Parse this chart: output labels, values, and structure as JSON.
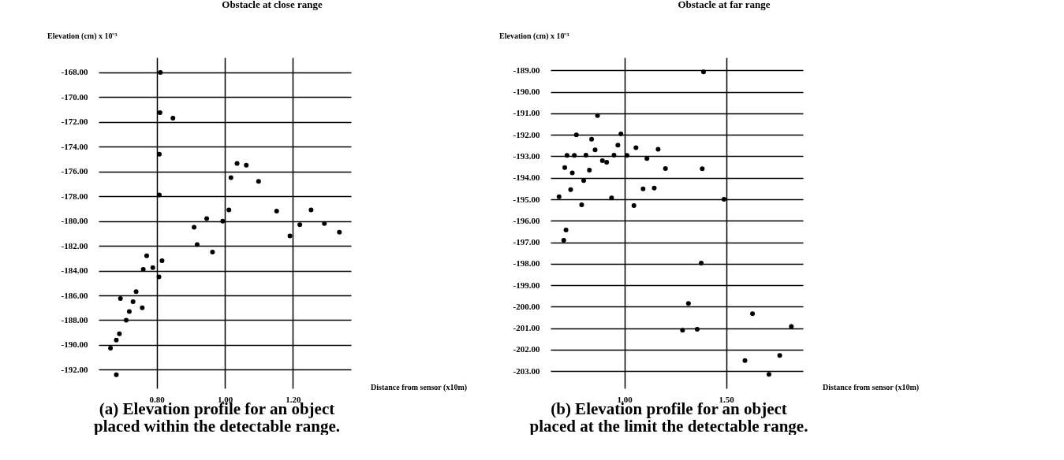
{
  "chart_data": [
    {
      "type": "scatter",
      "title": "Obstacle at close range",
      "ylabel": "Elevation (cm) x 10⁻³",
      "xlabel": "Distance from sensor (x10m)",
      "x": [
        0.811,
        0.81,
        0.848,
        0.808,
        1.036,
        1.063,
        1.018,
        1.099,
        0.808,
        1.012,
        1.152,
        1.253,
        0.91,
        0.947,
        0.994,
        0.919,
        0.964,
        1.191,
        1.22,
        1.292,
        1.336,
        0.771,
        0.761,
        0.789,
        0.816,
        0.807,
        0.74,
        0.694,
        0.731,
        0.758,
        0.72,
        0.711,
        0.691,
        0.682,
        0.665,
        0.682
      ],
      "series": [
        {
          "color": "#000000",
          "values": [
            -168.0,
            -171.25,
            -171.7,
            -174.6,
            -175.35,
            -175.5,
            -176.5,
            -176.8,
            -177.9,
            -179.1,
            -179.2,
            -179.1,
            -180.5,
            -179.8,
            -180.0,
            -181.9,
            -182.5,
            -181.2,
            -180.3,
            -180.2,
            -180.9,
            -182.8,
            -183.9,
            -183.75,
            -183.2,
            -184.5,
            -185.7,
            -186.25,
            -186.5,
            -187.0,
            -187.3,
            -188.0,
            -189.1,
            -189.6,
            -190.25,
            -192.4
          ]
        }
      ],
      "xlim": [
        0.63,
        1.37
      ],
      "ylim": [
        -193.5,
        -166.8
      ],
      "xticks": [
        {
          "value": 0.8,
          "label": "0.80"
        },
        {
          "value": 1.0,
          "label": "1.00"
        },
        {
          "value": 1.2,
          "label": "1.20"
        }
      ],
      "yticks": [
        {
          "value": -192,
          "label": "-192.00"
        },
        {
          "value": -190,
          "label": "-190.00"
        },
        {
          "value": -188,
          "label": "-188.00"
        },
        {
          "value": -186,
          "label": "-186.00"
        },
        {
          "value": -184,
          "label": "-184.00"
        },
        {
          "value": -182,
          "label": "-182.00"
        },
        {
          "value": -180,
          "label": "-180.00"
        },
        {
          "value": -178,
          "label": "-178.00"
        },
        {
          "value": -176,
          "label": "-176.00"
        },
        {
          "value": -174,
          "label": "-174.00"
        },
        {
          "value": -172,
          "label": "-172.00"
        },
        {
          "value": -170,
          "label": "-170.00"
        },
        {
          "value": -168,
          "label": "-168.00"
        }
      ],
      "grid": true,
      "marker": "circle",
      "legend": false,
      "annotations": [
        "(a) Elevation profile for an object placed within the detectable range."
      ]
    },
    {
      "type": "scatter",
      "title": "Obstacle at far range",
      "ylabel": "Elevation (cm) x 10⁻³",
      "xlabel": "Distance from sensor (x10m)",
      "x": [
        1.389,
        0.868,
        0.764,
        0.983,
        0.839,
        0.856,
        0.968,
        1.057,
        1.166,
        0.718,
        0.754,
        0.811,
        0.949,
        1.013,
        1.111,
        0.892,
        0.913,
        0.707,
        0.744,
        0.828,
        1.202,
        1.383,
        0.8,
        0.736,
        1.092,
        1.147,
        0.679,
        0.937,
        0.79,
        1.047,
        1.49,
        0.713,
        0.702,
        1.378,
        1.315,
        1.286,
        1.358,
        1.63,
        1.821,
        1.593,
        1.764,
        1.711
      ],
      "series": [
        {
          "color": "#000000",
          "values": [
            -189.07,
            -191.1,
            -192.0,
            -191.96,
            -192.2,
            -192.7,
            -192.48,
            -192.6,
            -192.67,
            -192.96,
            -192.96,
            -192.95,
            -192.95,
            -192.96,
            -193.1,
            -193.2,
            -193.28,
            -193.52,
            -193.77,
            -193.64,
            -193.57,
            -193.58,
            -194.13,
            -194.55,
            -194.51,
            -194.48,
            -194.88,
            -194.94,
            -195.26,
            -195.29,
            -195.0,
            -196.43,
            -196.91,
            -197.97,
            -199.85,
            -201.1,
            -201.05,
            -200.33,
            -200.92,
            -202.51,
            -202.27,
            -203.15
          ]
        }
      ],
      "xlim": [
        0.637,
        1.878
      ],
      "ylim": [
        -203.8,
        -188.4
      ],
      "xticks": [
        {
          "value": 1.0,
          "label": "1.00"
        },
        {
          "value": 1.5,
          "label": "1.50"
        }
      ],
      "yticks": [
        {
          "value": -203,
          "label": "-203.00"
        },
        {
          "value": -202,
          "label": "-202.00"
        },
        {
          "value": -201,
          "label": "-201.00"
        },
        {
          "value": -200,
          "label": "-200.00"
        },
        {
          "value": -199,
          "label": "-199.00"
        },
        {
          "value": -198,
          "label": "-198.00"
        },
        {
          "value": -197,
          "label": "-197.00"
        },
        {
          "value": -196,
          "label": "-196.00"
        },
        {
          "value": -195,
          "label": "-195.00"
        },
        {
          "value": -194,
          "label": "-194.00"
        },
        {
          "value": -193,
          "label": "-193.00"
        },
        {
          "value": -192,
          "label": "-192.00"
        },
        {
          "value": -191,
          "label": "-191.00"
        },
        {
          "value": -190,
          "label": "-190.00"
        },
        {
          "value": -189,
          "label": "-189.00"
        }
      ],
      "grid": true,
      "marker": "circle",
      "legend": false,
      "annotations": [
        "(b) Elevation profile for an object placed at the limit the detectable range."
      ]
    }
  ]
}
